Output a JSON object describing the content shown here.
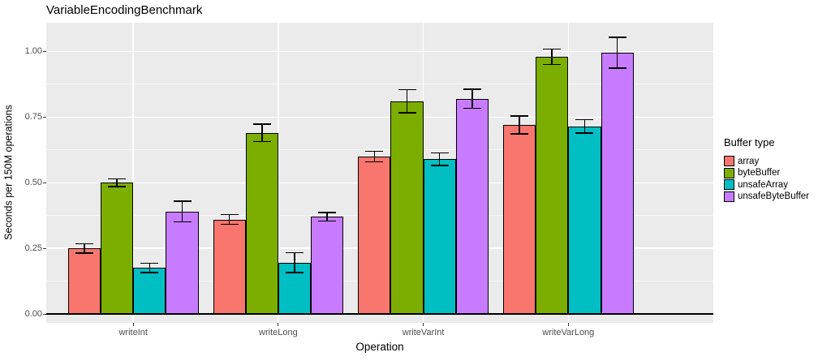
{
  "chart_data": {
    "type": "bar",
    "title": "VariableEncodingBenchmark",
    "xlabel": "Operation",
    "ylabel": "Seconds per 150M operations",
    "categories": [
      "writeInt",
      "writeLong",
      "writeVarInt",
      "writeVarLong"
    ],
    "series": [
      {
        "name": "array",
        "color": "#F8766D",
        "values": [
          0.25,
          0.36,
          0.6,
          0.72
        ],
        "errors": [
          0.018,
          0.018,
          0.02,
          0.034
        ]
      },
      {
        "name": "byteBuffer",
        "color": "#7CAE00",
        "values": [
          0.5,
          0.69,
          0.81,
          0.98
        ],
        "errors": [
          0.014,
          0.033,
          0.044,
          0.029
        ]
      },
      {
        "name": "unsafeArray",
        "color": "#00BFC4",
        "values": [
          0.175,
          0.195,
          0.59,
          0.715
        ],
        "errors": [
          0.018,
          0.038,
          0.024,
          0.025
        ]
      },
      {
        "name": "unsafeByteBuffer",
        "color": "#C77CFF",
        "values": [
          0.39,
          0.37,
          0.82,
          0.995
        ],
        "errors": [
          0.039,
          0.016,
          0.036,
          0.059
        ]
      }
    ],
    "error_bars": true,
    "ylim": [
      0,
      1.1
    ],
    "ytick_labels": [
      "0.00",
      "0.25",
      "0.50",
      "0.75",
      "1.00"
    ],
    "ytick_values": [
      0,
      0.25,
      0.5,
      0.75,
      1.0
    ],
    "minor_gridline_values": [
      0.125,
      0.375,
      0.625,
      0.875
    ],
    "grid": true,
    "legend_position": "right",
    "legend_title": "Buffer type",
    "panel_background": "#EBEBEB",
    "gridline_color": "#FFFFFF",
    "axis_text_color": "#4D4D4D",
    "bar_border_color": "#000000"
  }
}
